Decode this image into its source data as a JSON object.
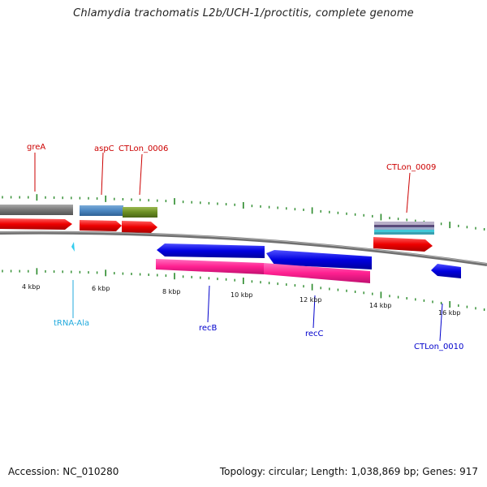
{
  "title": "Chlamydia trachomatis L2b/UCH-1/proctitis, complete genome",
  "footer": {
    "accession": "Accession: NC_010280",
    "summary": "Topology: circular; Length: 1,038,869 bp; Genes: 917"
  },
  "scale_labels": [
    "4 kbp",
    "6 kbp",
    "8 kbp",
    "10 kbp",
    "12 kbp",
    "14 kbp",
    "16 kbp"
  ],
  "gene_labels": {
    "greA": "greA",
    "aspC": "aspC",
    "CTLon_0006": "CTLon_0006",
    "CTLon_0009": "CTLon_0009",
    "tRNA_Ala": "tRNA-Ala",
    "recB": "recB",
    "recC": "recC",
    "CTLon_0010": "CTLon_0010"
  },
  "colors": {
    "forward_label": "#cc0000",
    "reverse_label": "#0000cc",
    "trna_label": "#22aadd",
    "cds_forward": "#ff0000",
    "cds_reverse": "#0000ee",
    "rna_reverse": "#ff2a9a",
    "backbone": "#808080",
    "tick": "#2a8a2a",
    "cog_grey": "#707070",
    "cog_blue": "#4a86c0",
    "cog_green": "#6b8e23"
  }
}
